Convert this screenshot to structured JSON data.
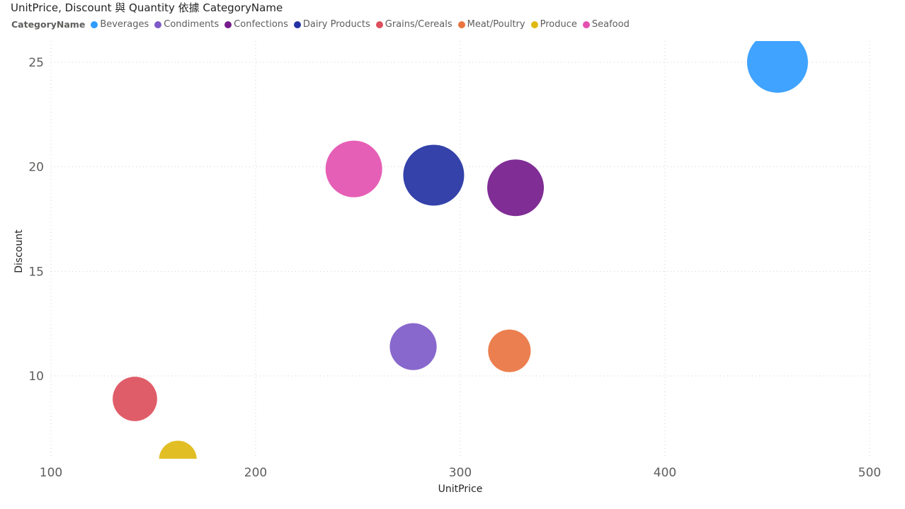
{
  "chart_data": {
    "type": "scatter",
    "title": "UnitPrice, Discount 與 Quantity 依據 CategoryName",
    "xlabel": "UnitPrice",
    "ylabel": "Discount",
    "legend_title": "CategoryName",
    "legend_position": "top-left",
    "size_field": "Quantity",
    "xlim": [
      100,
      500
    ],
    "ylim": [
      6,
      26
    ],
    "x_ticks": [
      100,
      200,
      300,
      400,
      500
    ],
    "y_ticks": [
      10,
      15,
      20,
      25
    ],
    "grid": true,
    "series": [
      {
        "name": "Beverages",
        "color": "#2f9bff",
        "x": 455,
        "y": 25.0,
        "size": 1.0
      },
      {
        "name": "Condiments",
        "color": "#7e5bc8",
        "x": 277,
        "y": 11.4,
        "size": 0.77
      },
      {
        "name": "Confections",
        "color": "#751b8c",
        "x": 327,
        "y": 19.0,
        "size": 0.93
      },
      {
        "name": "Dairy Products",
        "color": "#2332a3",
        "x": 287,
        "y": 19.6,
        "size": 1.0
      },
      {
        "name": "Grains/Cereals",
        "color": "#dc4f5c",
        "x": 141,
        "y": 8.9,
        "size": 0.73
      },
      {
        "name": "Meat/Poultry",
        "color": "#ea7440",
        "x": 324,
        "y": 11.2,
        "size": 0.7
      },
      {
        "name": "Produce",
        "color": "#dfb812",
        "x": 162,
        "y": 6.0,
        "size": 0.62
      },
      {
        "name": "Seafood",
        "color": "#e451b0",
        "x": 248,
        "y": 19.9,
        "size": 0.93
      }
    ]
  }
}
